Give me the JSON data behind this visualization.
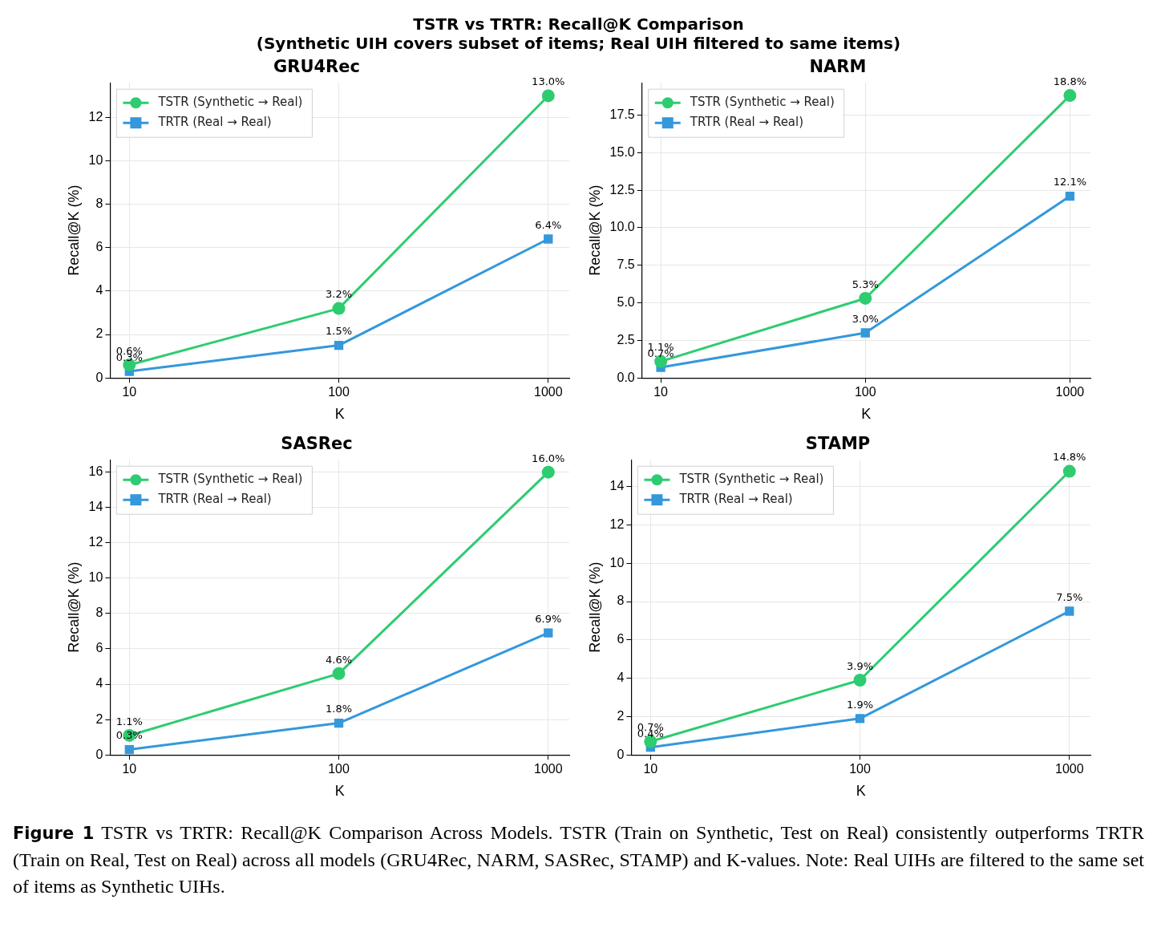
{
  "chart_data": [
    {
      "type": "other",
      "title": "TSTR vs TRTR: Recall@K Comparison\n(Synthetic UIH covers subset of items; Real UIH filtered to same items)"
    },
    {
      "type": "line",
      "title": "GRU4Rec",
      "xlabel": "K",
      "ylabel": "Recall@K (%)",
      "x": [
        10,
        100,
        1000
      ],
      "log": "x",
      "xlim": [
        8.1,
        1260
      ],
      "xticks": [
        10,
        100,
        1000
      ],
      "ylim": [
        0,
        13.6
      ],
      "yticks": [
        0,
        2,
        4,
        6,
        8,
        10,
        12
      ],
      "grid": true,
      "legend": "top left",
      "line_style": "solid",
      "series": [
        {
          "name": "TSTR (Synthetic → Real)",
          "color": "#2ecc71",
          "marker": "circle",
          "values": [
            0.6,
            3.2,
            13.0
          ],
          "value_labels": [
            "0.6%",
            "3.2%",
            "13.0%"
          ]
        },
        {
          "name": "TRTR (Real → Real)",
          "color": "#3498db",
          "marker": "square",
          "values": [
            0.3,
            1.5,
            6.4
          ],
          "value_labels": [
            "0.3%",
            "1.5%",
            "6.4%"
          ]
        }
      ]
    },
    {
      "type": "line",
      "title": "NARM",
      "xlabel": "K",
      "ylabel": "Recall@K (%)",
      "x": [
        10,
        100,
        1000
      ],
      "log": "x",
      "xlim": [
        8.1,
        1260
      ],
      "xticks": [
        10,
        100,
        1000
      ],
      "ylim": [
        0,
        19.65
      ],
      "yticks": [
        {
          "value": 0,
          "label": "0.0"
        },
        2.5,
        {
          "value": 5,
          "label": "5.0"
        },
        7.5,
        {
          "value": 10,
          "label": "10.0"
        },
        12.5,
        {
          "value": 15,
          "label": "15.0"
        },
        17.5
      ],
      "grid": true,
      "legend": "top left",
      "line_style": "solid",
      "series": [
        {
          "name": "TSTR (Synthetic → Real)",
          "color": "#2ecc71",
          "marker": "circle",
          "values": [
            1.1,
            5.3,
            18.8
          ],
          "value_labels": [
            "1.1%",
            "5.3%",
            "18.8%"
          ]
        },
        {
          "name": "TRTR (Real → Real)",
          "color": "#3498db",
          "marker": "square",
          "values": [
            0.7,
            3.0,
            12.1
          ],
          "value_labels": [
            "0.7%",
            "3.0%",
            "12.1%"
          ]
        }
      ]
    },
    {
      "type": "line",
      "title": "SASRec",
      "xlabel": "K",
      "ylabel": "Recall@K (%)",
      "x": [
        10,
        100,
        1000
      ],
      "log": "x",
      "xlim": [
        8.1,
        1260
      ],
      "xticks": [
        10,
        100,
        1000
      ],
      "ylim": [
        0,
        16.7
      ],
      "yticks": [
        0,
        2,
        4,
        6,
        8,
        10,
        12,
        14,
        16
      ],
      "grid": true,
      "legend": "top left",
      "line_style": "solid",
      "series": [
        {
          "name": "TSTR (Synthetic → Real)",
          "color": "#2ecc71",
          "marker": "circle",
          "values": [
            1.1,
            4.6,
            16.0
          ],
          "value_labels": [
            "1.1%",
            "4.6%",
            "16.0%"
          ]
        },
        {
          "name": "TRTR (Real → Real)",
          "color": "#3498db",
          "marker": "square",
          "values": [
            0.3,
            1.8,
            6.9
          ],
          "value_labels": [
            "0.3%",
            "1.8%",
            "6.9%"
          ]
        }
      ]
    },
    {
      "type": "line",
      "title": "STAMP",
      "xlabel": "K",
      "ylabel": "Recall@K (%)",
      "x": [
        10,
        100,
        1000
      ],
      "log": "x",
      "xlim": [
        8.1,
        1260
      ],
      "xticks": [
        10,
        100,
        1000
      ],
      "ylim": [
        0,
        15.4
      ],
      "yticks": [
        0,
        2,
        4,
        6,
        8,
        10,
        12,
        14
      ],
      "grid": true,
      "legend": "top left",
      "line_style": "solid",
      "series": [
        {
          "name": "TSTR (Synthetic → Real)",
          "color": "#2ecc71",
          "marker": "circle",
          "values": [
            0.7,
            3.9,
            14.8
          ],
          "value_labels": [
            "0.7%",
            "3.9%",
            "14.8%"
          ]
        },
        {
          "name": "TRTR (Real → Real)",
          "color": "#3498db",
          "marker": "square",
          "values": [
            0.4,
            1.9,
            7.5
          ],
          "value_labels": [
            "0.4%",
            "1.9%",
            "7.5%"
          ]
        }
      ]
    },
    {
      "type": "other",
      "annotations": [
        "Figure 1 TSTR vs TRTR: Recall@K Comparison Across Models. TSTR (Train on Synthetic, Test on Real) consistently outperforms TRTR (Train on Real, Test on Real) across all models (GRU4Rec, NARM, SASRec, STAMP) and K-values. Note: Real UIHs are filtered to the same set of items as Synthetic UIHs."
      ]
    }
  ]
}
